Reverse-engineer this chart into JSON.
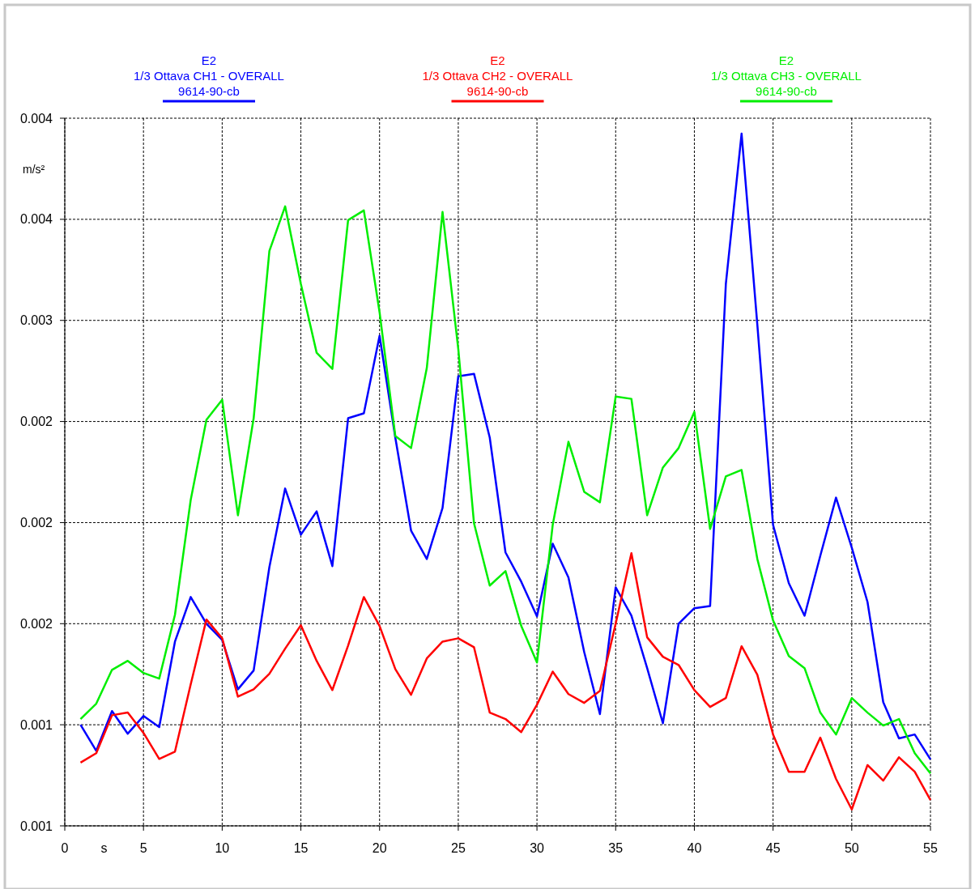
{
  "chart_data": {
    "type": "line",
    "xlabel": "s",
    "ylabel": "m/s²",
    "xlim": [
      0,
      55
    ],
    "xticks": [
      0,
      5,
      10,
      15,
      20,
      25,
      30,
      35,
      40,
      45,
      50,
      55
    ],
    "ylim": [
      0.0012,
      0.0043
    ],
    "log": "y",
    "yticks": [
      {
        "value": 0.0012,
        "label": "0.001"
      },
      {
        "value": 0.00144,
        "label": "0.001"
      },
      {
        "value": 0.001728,
        "label": "0.002"
      },
      {
        "value": 0.0020736,
        "label": "0.002"
      },
      {
        "value": 0.0024883,
        "label": "0.002"
      },
      {
        "value": 0.002986,
        "label": "0.003"
      },
      {
        "value": 0.0035832,
        "label": "0.004"
      },
      {
        "value": 0.0043,
        "label": "0.004"
      }
    ],
    "grid": true,
    "legend": "top",
    "marker": "none",
    "line_style": "solid",
    "x": [
      1,
      2,
      3,
      4,
      5,
      6,
      7,
      8,
      9,
      10,
      11,
      12,
      13,
      14,
      15,
      16,
      17,
      18,
      19,
      20,
      21,
      22,
      23,
      24,
      25,
      26,
      27,
      28,
      29,
      30,
      31,
      32,
      33,
      34,
      35,
      36,
      37,
      38,
      39,
      40,
      41,
      42,
      43,
      44,
      45,
      46,
      47,
      48,
      49,
      50,
      51,
      52,
      53,
      54,
      55
    ],
    "series": [
      {
        "name": "E2\n1/3 Ottava CH1 - OVERALL\n9614-90-cb",
        "color": "#0000ff",
        "values": [
          0.00144,
          0.001374,
          0.001476,
          0.001417,
          0.001463,
          0.001434,
          0.001673,
          0.001813,
          0.001728,
          0.001678,
          0.001535,
          0.001588,
          0.001914,
          0.002205,
          0.002029,
          0.002116,
          0.001917,
          0.002503,
          0.002525,
          0.002904,
          0.002417,
          0.002044,
          0.001942,
          0.002129,
          0.0027,
          0.002712,
          0.002417,
          0.001965,
          0.001864,
          0.001751,
          0.001996,
          0.001878,
          0.001642,
          0.001468,
          0.001845,
          0.001753,
          0.001595,
          0.001444,
          0.001728,
          0.001777,
          0.001784,
          0.003189,
          0.004182,
          0.002964,
          0.002065,
          0.001859,
          0.001753,
          0.001953,
          0.002169,
          0.001982,
          0.001797,
          0.0015,
          0.001405,
          0.001415,
          0.001353
        ]
      },
      {
        "name": "E2\n1/3 Ottava CH2 - OVERALL\n9614-90-cb",
        "color": "#ff0000",
        "values": [
          0.001345,
          0.001368,
          0.001465,
          0.001472,
          0.001419,
          0.001354,
          0.001372,
          0.001549,
          0.001741,
          0.001683,
          0.001515,
          0.001535,
          0.001579,
          0.001652,
          0.001723,
          0.001616,
          0.001533,
          0.001661,
          0.001813,
          0.001721,
          0.001592,
          0.00152,
          0.001623,
          0.001673,
          0.001683,
          0.001656,
          0.001472,
          0.001455,
          0.001421,
          0.001493,
          0.001585,
          0.001522,
          0.001498,
          0.001531,
          0.001728,
          0.001962,
          0.001686,
          0.001628,
          0.001604,
          0.001533,
          0.001487,
          0.001511,
          0.001659,
          0.001576,
          0.001415,
          0.001323,
          0.001323,
          0.001407,
          0.001306,
          0.001236,
          0.001339,
          0.001302,
          0.001358,
          0.001323,
          0.001257
        ]
      },
      {
        "name": "E2\n1/3 Ottava CH3 - OVERALL\n9614-90-cb",
        "color": "#00ee00",
        "values": [
          0.001455,
          0.001496,
          0.00159,
          0.001616,
          0.001581,
          0.001565,
          0.001756,
          0.00216,
          0.002496,
          0.002588,
          0.002101,
          0.002503,
          0.003385,
          0.003668,
          0.003189,
          0.002817,
          0.002736,
          0.003578,
          0.003641,
          0.00303,
          0.002424,
          0.002372,
          0.00274,
          0.003631,
          0.002837,
          0.002071,
          0.001851,
          0.0019,
          0.001721,
          0.001611,
          0.002065,
          0.002399,
          0.002192,
          0.002151,
          0.002603,
          0.002592,
          0.002101,
          0.00229,
          0.002372,
          0.002532,
          0.00205,
          0.002254,
          0.00228,
          0.001942,
          0.001738,
          0.00163,
          0.001595,
          0.001472,
          0.001415,
          0.001511,
          0.001472,
          0.001438,
          0.001455,
          0.001368,
          0.001319
        ]
      }
    ]
  }
}
